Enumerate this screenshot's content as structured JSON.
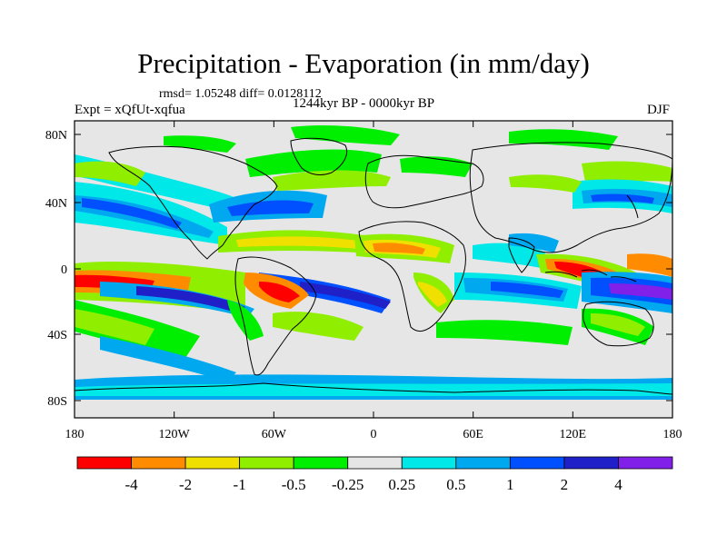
{
  "title": "Precipitation - Evaporation (in mm/day)",
  "stats": "rmsd= 1.05248 diff= 0.0128112",
  "experiment": "Expt = xQfUt-xqfua",
  "period": "1244kyr BP - 0000kyr BP",
  "season": "DJF",
  "lat_ticks": [
    "80N",
    "40N",
    "0",
    "40S",
    "80S"
  ],
  "lon_ticks": [
    "180",
    "120W",
    "60W",
    "0",
    "60E",
    "120E",
    "180"
  ],
  "colorbar": {
    "colors": [
      "#ff0000",
      "#ff8c00",
      "#f0e000",
      "#90ee00",
      "#00ee00",
      "#e6e6e6",
      "#00e8e8",
      "#00a8f0",
      "#0050ff",
      "#2020c8",
      "#8020e8"
    ],
    "labels": [
      "-4",
      "-2",
      "-1",
      "-0.5",
      "-0.25",
      "0.25",
      "0.5",
      "1",
      "2",
      "4"
    ]
  },
  "background_color": "#e6e6e6"
}
